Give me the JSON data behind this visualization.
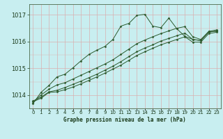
{
  "title": "Graphe pression niveau de la mer (hPa)",
  "bg_color": "#c8eef0",
  "grid_color_h": "#d8b0b0",
  "grid_color_v": "#d8b0b0",
  "line_color": "#2d5a2d",
  "x_labels": [
    "0",
    "1",
    "2",
    "3",
    "4",
    "5",
    "6",
    "7",
    "8",
    "9",
    "10",
    "11",
    "12",
    "13",
    "14",
    "15",
    "16",
    "17",
    "18",
    "19",
    "20",
    "21",
    "22",
    "23"
  ],
  "ylim": [
    1013.5,
    1017.4
  ],
  "yticks": [
    1014,
    1015,
    1016,
    1017
  ],
  "ylabel_fontsize": 6.0,
  "xlabel_fontsize": 5.5,
  "series": [
    [
      1013.75,
      1013.88,
      1014.1,
      1014.12,
      1014.2,
      1014.3,
      1014.42,
      1014.55,
      1014.68,
      1014.82,
      1014.97,
      1015.12,
      1015.3,
      1015.48,
      1015.62,
      1015.75,
      1015.88,
      1015.98,
      1016.08,
      1016.18,
      1015.98,
      1015.98,
      1016.3,
      1016.35
    ],
    [
      1013.78,
      1013.92,
      1014.12,
      1014.18,
      1014.28,
      1014.4,
      1014.52,
      1014.65,
      1014.78,
      1014.93,
      1015.08,
      1015.25,
      1015.44,
      1015.62,
      1015.76,
      1015.88,
      1016.02,
      1016.12,
      1016.22,
      1016.32,
      1016.08,
      1016.04,
      1016.35,
      1016.4
    ],
    [
      1013.72,
      1014.0,
      1014.22,
      1014.38,
      1014.46,
      1014.6,
      1014.74,
      1014.88,
      1015.02,
      1015.16,
      1015.32,
      1015.52,
      1015.72,
      1015.92,
      1016.06,
      1016.18,
      1016.3,
      1016.4,
      1016.5,
      1016.56,
      1016.18,
      1016.08,
      1016.38,
      1016.44
    ],
    [
      1013.68,
      1014.1,
      1014.36,
      1014.68,
      1014.78,
      1015.02,
      1015.28,
      1015.52,
      1015.68,
      1015.82,
      1016.08,
      1016.58,
      1016.68,
      1016.98,
      1017.02,
      1016.58,
      1016.52,
      1016.88,
      1016.48,
      1016.2,
      1016.08,
      1016.04,
      1016.38,
      1016.38
    ]
  ]
}
